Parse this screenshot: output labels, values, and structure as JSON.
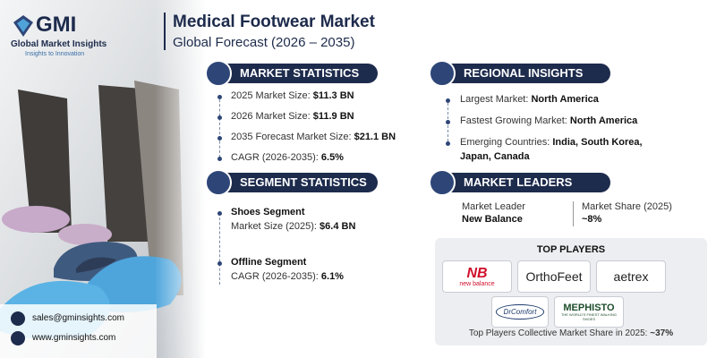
{
  "logo": {
    "name": "GMI",
    "company": "Global Market Insights",
    "tagline": "Insights to Innovation"
  },
  "header": {
    "title": "Medical Footwear Market",
    "subtitle": "Global Forecast (2026 – 2035)"
  },
  "market_statistics": {
    "heading": "MARKET STATISTICS",
    "items": [
      {
        "label": "2025 Market Size:",
        "value": "$11.3 BN"
      },
      {
        "label": "2026 Market Size:",
        "value": "$11.9 BN"
      },
      {
        "label": "2035 Forecast Market Size:",
        "value": "$21.1 BN"
      },
      {
        "label": "CAGR (2026-2035):",
        "value": "6.5%"
      }
    ]
  },
  "regional_insights": {
    "heading": "REGIONAL INSIGHTS",
    "items": [
      {
        "label": "Largest Market:",
        "value": "North America"
      },
      {
        "label": "Fastest Growing Market:",
        "value": "North America"
      },
      {
        "label": "Emerging Countries:",
        "value": "India, South Korea,",
        "value_cont": "Japan, Canada"
      }
    ]
  },
  "segment_statistics": {
    "heading": "SEGMENT STATISTICS",
    "items": [
      {
        "segment": "Shoes Segment",
        "label": "Market Size (2025):",
        "value": "$6.4 BN"
      },
      {
        "segment": "Offline Segment",
        "label": "CAGR (2026-2035):",
        "value": "6.1%"
      }
    ]
  },
  "market_leaders": {
    "heading": "MARKET LEADERS",
    "leader_label": "Market Leader",
    "leader": "New Balance",
    "share_label": "Market Share (2025)",
    "share": "~8%"
  },
  "top_players": {
    "heading": "TOP PLAYERS",
    "players": [
      "new balance",
      "OrthoFeet",
      "aetrex",
      "DrComfort",
      "MEPHISTO"
    ],
    "mephisto_tagline": "THE WORLD'S FINEST WALKING SHOES",
    "footer_label": "Top Players Collective Market Share in 2025:",
    "footer_value": "~37%"
  },
  "contact": {
    "email": "sales@gminsights.com",
    "website": "www.gminsights.com"
  }
}
